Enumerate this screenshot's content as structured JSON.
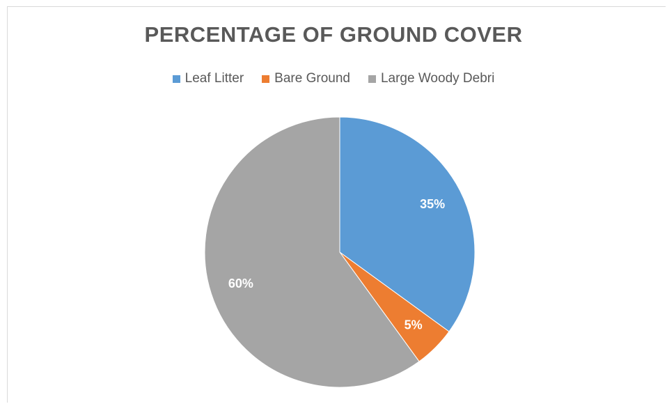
{
  "chart_data": {
    "type": "pie",
    "title": "PERCENTAGE OF GROUND COVER",
    "legend_position": "top",
    "series": [
      {
        "name": "Leaf Litter",
        "value": 35,
        "label": "35%",
        "color": "#5b9bd5"
      },
      {
        "name": "Bare Ground",
        "value": 5,
        "label": "5%",
        "color": "#ed7d31"
      },
      {
        "name": "Large Woody Debri",
        "value": 60,
        "label": "60%",
        "color": "#a5a5a5"
      }
    ]
  }
}
